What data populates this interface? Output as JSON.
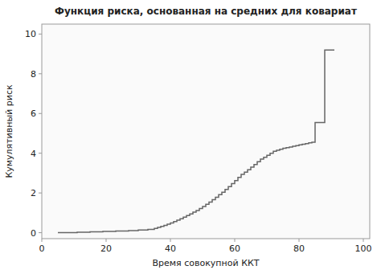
{
  "chart_data": {
    "type": "step",
    "title": "Функция риска, основанная на средних для ковариат",
    "xlabel": "Время совокупной ККТ",
    "ylabel": "Кумулятивный риск",
    "color": "#666666",
    "grid": false,
    "xlim": [
      0,
      102
    ],
    "ylim": [
      -0.3,
      10.5
    ],
    "xticks": [
      0,
      20,
      40,
      60,
      80,
      100
    ],
    "yticks": [
      0,
      2,
      4,
      6,
      8,
      10
    ],
    "x": [
      5,
      8,
      11,
      15,
      19,
      23,
      27,
      30,
      33,
      35,
      36,
      37,
      38,
      39,
      40,
      41,
      42,
      43,
      44,
      45,
      46,
      47,
      48,
      49,
      50,
      51,
      52,
      53,
      54,
      55,
      56,
      57,
      58,
      59,
      60,
      61,
      62,
      63,
      64,
      65,
      66,
      67,
      68,
      69,
      70,
      71,
      72,
      73,
      74,
      75,
      76,
      77,
      78,
      79,
      80,
      81,
      82,
      83,
      84,
      85,
      88,
      91
    ],
    "values": [
      0.0,
      0.0,
      0.02,
      0.04,
      0.06,
      0.08,
      0.1,
      0.13,
      0.17,
      0.22,
      0.27,
      0.32,
      0.37,
      0.43,
      0.49,
      0.56,
      0.63,
      0.7,
      0.78,
      0.86,
      0.94,
      1.03,
      1.12,
      1.22,
      1.32,
      1.43,
      1.54,
      1.66,
      1.78,
      1.91,
      2.04,
      2.18,
      2.32,
      2.47,
      2.62,
      2.78,
      2.94,
      3.05,
      3.17,
      3.3,
      3.43,
      3.57,
      3.7,
      3.8,
      3.9,
      4.0,
      4.1,
      4.15,
      4.2,
      4.25,
      4.28,
      4.31,
      4.35,
      4.38,
      4.42,
      4.45,
      4.48,
      4.52,
      4.55,
      5.55,
      9.2,
      9.2
    ]
  }
}
